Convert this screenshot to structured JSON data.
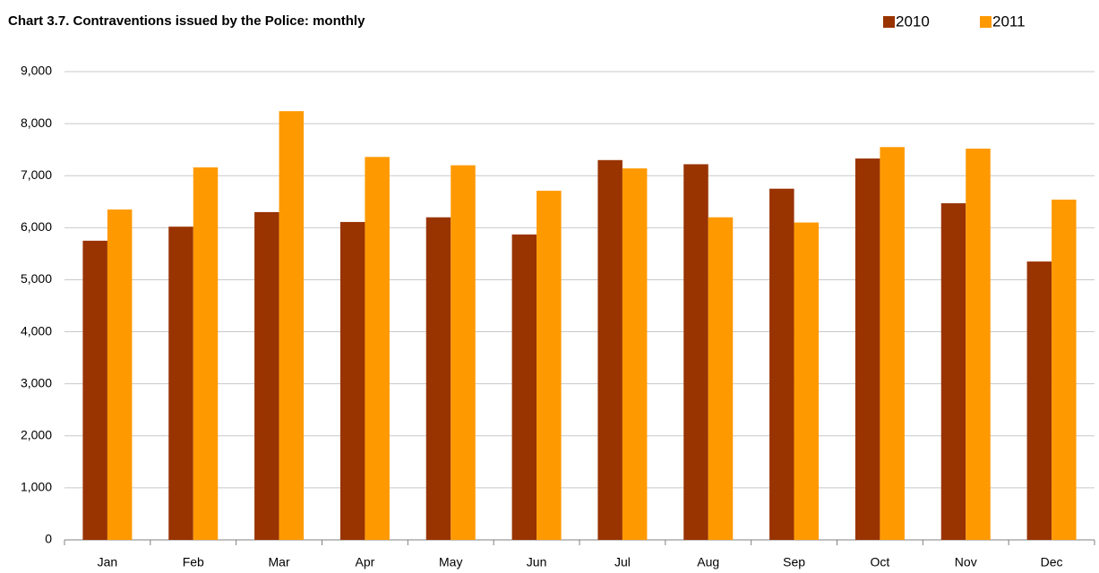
{
  "chart_data": {
    "type": "bar",
    "title": "Chart 3.7.  Contraventions issued by the Police: monthly",
    "categories": [
      "Jan",
      "Feb",
      "Mar",
      "Apr",
      "May",
      "Jun",
      "Jul",
      "Aug",
      "Sep",
      "Oct",
      "Nov",
      "Dec"
    ],
    "series": [
      {
        "name": "2010",
        "color": "#993300",
        "values": [
          5750,
          6020,
          6300,
          6110,
          6200,
          5870,
          7300,
          7220,
          6750,
          7330,
          6470,
          5350
        ]
      },
      {
        "name": "2011",
        "color": "#ff9900",
        "values": [
          6350,
          7160,
          8240,
          7360,
          7200,
          6710,
          7140,
          6200,
          6100,
          7550,
          7520,
          6540
        ]
      }
    ],
    "ylim": [
      0,
      9000
    ],
    "yticks": [
      0,
      {
        "value": 1000,
        "label": "1,000"
      },
      {
        "value": 2000,
        "label": "2,000"
      },
      {
        "value": 3000,
        "label": "3,000"
      },
      {
        "value": 4000,
        "label": "4,000"
      },
      {
        "value": 5000,
        "label": "5,000"
      },
      {
        "value": 6000,
        "label": "6,000"
      },
      {
        "value": 7000,
        "label": "7,000"
      },
      {
        "value": 8000,
        "label": "8,000"
      },
      {
        "value": 9000,
        "label": "9,000"
      }
    ],
    "grid": true,
    "legend": "top-right"
  }
}
